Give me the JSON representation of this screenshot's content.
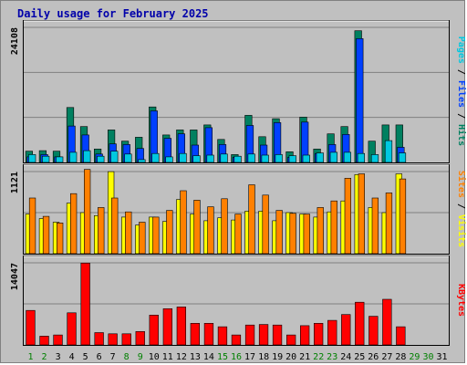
{
  "page": {
    "title": "Daily usage for February 2025"
  },
  "chart_data": {
    "type": "bar",
    "title": "Daily usage for February 2025",
    "categories": [
      "1",
      "2",
      "3",
      "4",
      "5",
      "6",
      "7",
      "8",
      "9",
      "10",
      "11",
      "12",
      "13",
      "14",
      "15",
      "16",
      "17",
      "18",
      "19",
      "20",
      "21",
      "22",
      "23",
      "24",
      "25",
      "26",
      "27",
      "28",
      "29",
      "30",
      "31"
    ],
    "weekend_days": [
      "1",
      "2",
      "8",
      "9",
      "15",
      "16",
      "22",
      "23",
      "29",
      "30"
    ],
    "panels": [
      {
        "name": "hits-files-pages",
        "axis_max": 24108,
        "axis_max_label": "24108",
        "right_label": [
          {
            "text": "Pages",
            "color": "#00c8e0"
          },
          {
            "text": " / ",
            "color": "#000000"
          },
          {
            "text": "Files",
            "color": "#0040ff"
          },
          {
            "text": " / ",
            "color": "#000000"
          },
          {
            "text": "Hits",
            "color": "#008060"
          }
        ],
        "series": [
          {
            "name": "Hits",
            "color": "#008060",
            "values": [
              2000,
              2100,
              2000,
              9800,
              6400,
              2400,
              5800,
              3800,
              4500,
              9900,
              4900,
              5800,
              5800,
              6700,
              4100,
              1400,
              8400,
              4600,
              7800,
              1900,
              8100,
              2400,
              5100,
              6400,
              23500,
              3800,
              6700,
              6700,
              0,
              0,
              0
            ]
          },
          {
            "name": "Files",
            "color": "#0040ff",
            "values": [
              1000,
              1400,
              1000,
              6500,
              4900,
              1500,
              3300,
              3200,
              2500,
              9200,
              4300,
              5100,
              3100,
              6200,
              3200,
              900,
              6600,
              3100,
              7100,
              900,
              7200,
              1600,
              3200,
              5000,
              22100,
              0,
              0,
              2700,
              0,
              0,
              0
            ]
          },
          {
            "name": "Pages",
            "color": "#00c8e0",
            "values": [
              1400,
              1100,
              1000,
              1800,
              2100,
              1100,
              2000,
              1500,
              500,
              1600,
              1000,
              1600,
              1200,
              1300,
              1500,
              1100,
              1500,
              1300,
              1400,
              1200,
              1300,
              1700,
              1800,
              1800,
              1600,
              1400,
              3900,
              1700,
              0,
              0,
              0
            ]
          }
        ]
      },
      {
        "name": "visits-sites",
        "axis_max": 1121,
        "axis_max_label": "1121",
        "right_label": [
          {
            "text": "Sites",
            "color": "#ff8000"
          },
          {
            "text": " / ",
            "color": "#000000"
          },
          {
            "text": "Visits",
            "color": "#ffff00"
          }
        ],
        "series": [
          {
            "name": "Visits",
            "color": "#ffff00",
            "values": [
              540,
              480,
              430,
              690,
              560,
              520,
              1120,
              500,
              390,
              500,
              440,
              740,
              540,
              450,
              490,
              460,
              580,
              580,
              450,
              560,
              540,
              500,
              570,
              720,
              1080,
              630,
              560,
              1090,
              0,
              0,
              0
            ]
          },
          {
            "name": "Sites",
            "color": "#ff8000",
            "values": [
              760,
              510,
              420,
              820,
              1150,
              630,
              760,
              570,
              430,
              500,
              590,
              860,
              730,
              640,
              750,
              540,
              940,
              800,
              590,
              550,
              540,
              630,
              720,
              1030,
              1090,
              760,
              830,
              1020,
              0,
              0,
              0
            ]
          }
        ]
      },
      {
        "name": "kbytes",
        "axis_max": 14047,
        "axis_max_label": "14047",
        "right_label": [
          {
            "text": "KBytes",
            "color": "#ff0000"
          }
        ],
        "series": [
          {
            "name": "KBytes",
            "color": "#ff0000",
            "values": [
              5900,
              1500,
              1700,
              5500,
              14000,
              2100,
              1900,
              1900,
              2300,
              5100,
              6200,
              6500,
              3700,
              3700,
              3100,
              1700,
              3400,
              3500,
              3400,
              1700,
              3300,
              3700,
              4200,
              5200,
              7300,
              4900,
              7800,
              3100,
              0,
              0,
              0
            ]
          }
        ]
      }
    ],
    "colors": {
      "weekday_label": "#008000",
      "weekend_label": "#008000",
      "axis_label": "#000000",
      "grid": "#808080",
      "panel_bg": "#c0c0c0"
    }
  }
}
